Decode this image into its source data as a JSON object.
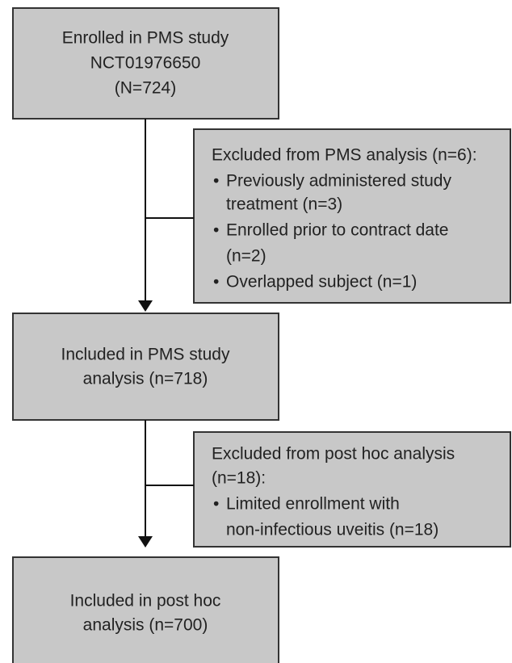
{
  "nodes": [
    {
      "lines": [
        "Enrolled in PMS study",
        "NCT01976650",
        "(N=724)"
      ]
    },
    {
      "title": [
        "Excluded from PMS analysis (n=6):"
      ],
      "bullets": [
        [
          "Previously administered study",
          "treatment (n=3)"
        ],
        [
          "Enrolled prior to contract date",
          "(n=2)"
        ],
        [
          "Overlapped subject (n=1)"
        ]
      ]
    },
    {
      "lines": [
        "Included in PMS study",
        "analysis (n=718)"
      ]
    },
    {
      "title": [
        "Excluded from post hoc analysis",
        "(n=18):"
      ],
      "bullets": [
        [
          "Limited enrollment with",
          "non-infectious uveitis (n=18)"
        ]
      ]
    },
    {
      "lines": [
        "Included in post hoc",
        "analysis (n=700)"
      ]
    }
  ]
}
